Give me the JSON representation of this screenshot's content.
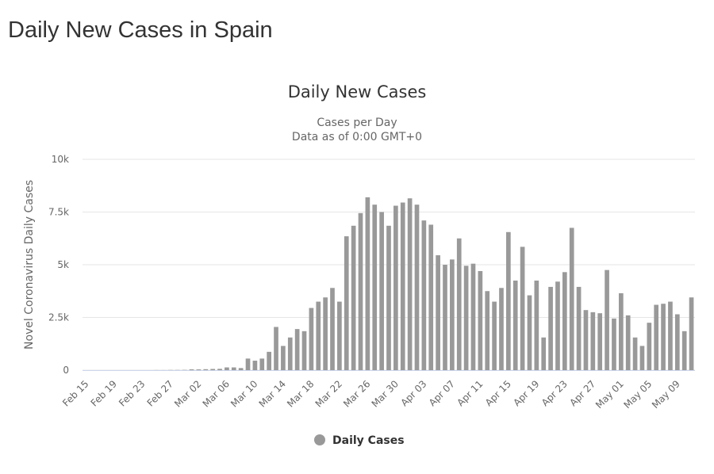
{
  "page_title": "Daily New Cases in Spain",
  "chart_data": {
    "type": "bar",
    "title": "Daily New Cases",
    "subtitle": [
      "Cases per Day",
      "Data as of 0:00 GMT+0"
    ],
    "y_label": "Novel Coronavirus Daily Cases",
    "categories": [
      "Feb 15",
      null,
      null,
      null,
      "Feb 19",
      null,
      null,
      null,
      "Feb 23",
      null,
      null,
      null,
      "Feb 27",
      null,
      null,
      null,
      "Mar 02",
      null,
      null,
      null,
      "Mar 06",
      null,
      null,
      null,
      "Mar 10",
      null,
      null,
      null,
      "Mar 14",
      null,
      null,
      null,
      "Mar 18",
      null,
      null,
      null,
      "Mar 22",
      null,
      null,
      null,
      "Mar 26",
      null,
      null,
      null,
      "Mar 30",
      null,
      null,
      null,
      "Apr 03",
      null,
      null,
      null,
      "Apr 07",
      null,
      null,
      null,
      "Apr 11",
      null,
      null,
      null,
      "Apr 15",
      null,
      null,
      null,
      "Apr 19",
      null,
      null,
      null,
      "Apr 23",
      null,
      null,
      null,
      "Apr 27",
      null,
      null,
      null,
      "May 01",
      null,
      null,
      null,
      "May 05",
      null,
      null,
      null,
      "May 09",
      null,
      null
    ],
    "series": [
      {
        "name": "Daily Cases",
        "color": "#999999",
        "values": [
          0,
          0,
          0,
          0,
          0,
          0,
          0,
          0,
          0,
          0,
          4,
          3,
          8,
          9,
          13,
          39,
          36,
          46,
          57,
          63,
          130,
          130,
          100,
          550,
          450,
          550,
          870,
          2050,
          1150,
          1550,
          1950,
          1850,
          2950,
          3250,
          3450,
          3900,
          3250,
          6350,
          6850,
          7450,
          8200,
          7850,
          7500,
          6850,
          7800,
          7950,
          8150,
          7850,
          7100,
          6900,
          5450,
          5000,
          5250,
          6250,
          4950,
          5050,
          4700,
          3750,
          3250,
          3900,
          6550,
          4250,
          5850,
          3550,
          4250,
          1550,
          3950,
          4200,
          4650,
          6750,
          3950,
          2850,
          2750,
          2700,
          4750,
          2450,
          3650,
          2600,
          1550,
          1150,
          2250,
          3100,
          3150,
          3250,
          2650,
          1850,
          3450
        ]
      }
    ],
    "ylim": [
      0,
      10000
    ],
    "yticks": [
      0,
      {
        "value": 2500,
        "label": "2.5k"
      },
      {
        "value": 5000,
        "label": "5k"
      },
      {
        "value": 7500,
        "label": "7.5k"
      },
      {
        "value": 10000,
        "label": "10k"
      }
    ],
    "grid": true
  }
}
